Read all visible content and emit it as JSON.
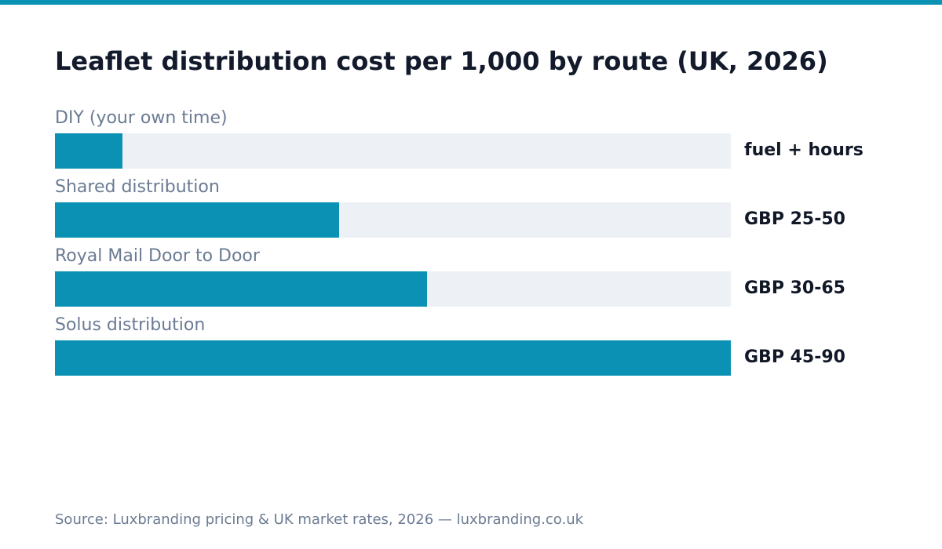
{
  "accent_color": "#0a91b3",
  "track_color": "#edf1f6",
  "chart_data": {
    "type": "bar",
    "orientation": "horizontal",
    "title": "Leaflet distribution cost per 1,000 by route (UK, 2026)",
    "categories": [
      "DIY (your own time)",
      "Shared distribution",
      "Royal Mail Door to Door",
      "Solus distribution"
    ],
    "value_labels": [
      "fuel + hours",
      "GBP 25-50",
      "GBP 30-65",
      "GBP 45-90"
    ],
    "relative_values": [
      0.1,
      0.42,
      0.55,
      1.0
    ],
    "xlabel": "",
    "ylabel": "",
    "grid": false,
    "legend": "none"
  },
  "source": "Source: Luxbranding pricing & UK market rates, 2026 — luxbranding.co.uk"
}
